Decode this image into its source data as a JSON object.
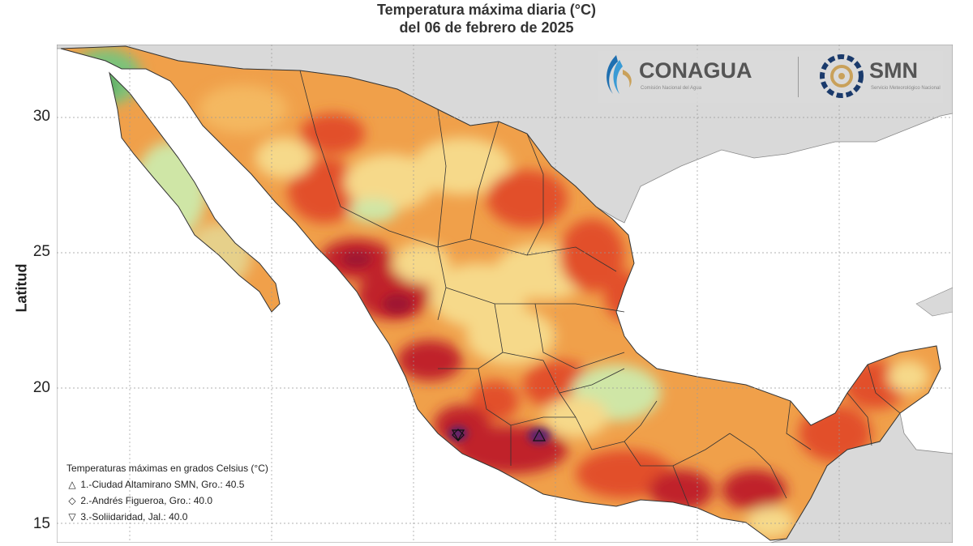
{
  "title_line1": "Temperatura máxima diaria (°C)",
  "title_line2": "del 06 de febrero de 2025",
  "ylabel": "Latitud",
  "yticks": [
    "30",
    "25",
    "20",
    "15"
  ],
  "logos": {
    "conagua": "CONAGUA",
    "conagua_sub": "Comisión Nacional del Agua",
    "smn": "SMN",
    "smn_sub": "Servicio Meteorológico Nacional"
  },
  "legend": {
    "title": "Temperaturas máximas en grados Celsius (°C)",
    "items": [
      {
        "symbol": "△",
        "text": "1.-Ciudad Altamirano SMN, Gro.: 40.5"
      },
      {
        "symbol": "◇",
        "text": "2.-Andrés Figueroa, Gro.: 40.0"
      },
      {
        "symbol": "▽",
        "text": "3.-Soliidaridad, Jal.: 40.0"
      }
    ]
  },
  "colors": {
    "land_base": "#f0a04a",
    "hot": "#e2502a",
    "very_hot": "#c0202a",
    "extreme": "#5a2070",
    "mild": "#f6d98a",
    "cool": "#cfe6a6",
    "cold": "#4aa85a",
    "ocean": "#ffffff",
    "neighbor": "#d9d9d9"
  }
}
